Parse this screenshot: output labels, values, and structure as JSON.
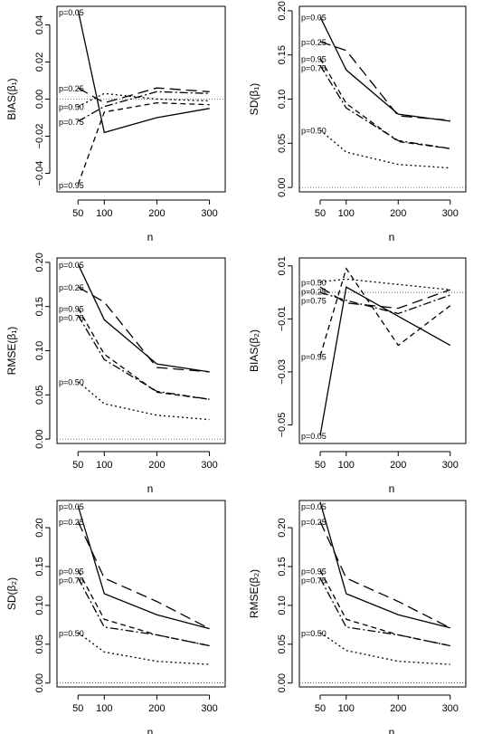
{
  "chart_data": [
    {
      "type": "line",
      "ylabel": "BIAS(β₁)",
      "xlabel": "n",
      "x": [
        50,
        100,
        200,
        300
      ],
      "xticks": [
        "50",
        "100",
        "200",
        "300"
      ],
      "ylim": [
        -0.05,
        0.05
      ],
      "yticks": [
        -0.04,
        -0.02,
        0.0,
        0.02,
        0.04
      ],
      "ytick_labels": [
        "−0.04",
        "−0.02",
        "0.00",
        "0.02",
        "0.04"
      ],
      "reference_line": 0,
      "series": [
        {
          "name": "p=0.05",
          "values": [
            0.048,
            -0.018,
            -0.01,
            -0.005
          ]
        },
        {
          "name": "p=0.25",
          "values": [
            0.006,
            -0.002,
            0.006,
            0.004
          ]
        },
        {
          "name": "p=0.50",
          "values": [
            -0.004,
            0.003,
            0.0,
            -0.001
          ]
        },
        {
          "name": "p=0.75",
          "values": [
            -0.012,
            -0.004,
            0.004,
            0.003
          ]
        },
        {
          "name": "p=0.95",
          "values": [
            -0.046,
            -0.007,
            -0.002,
            -0.003
          ]
        }
      ]
    },
    {
      "type": "line",
      "ylabel": "SD(β₁)",
      "xlabel": "n",
      "x": [
        50,
        100,
        200,
        300
      ],
      "xticks": [
        "50",
        "100",
        "200",
        "300"
      ],
      "ylim": [
        -0.005,
        0.205
      ],
      "yticks": [
        0.0,
        0.05,
        0.1,
        0.15,
        0.2
      ],
      "ytick_labels": [
        "0.00",
        "0.05",
        "0.10",
        "0.15",
        "0.20"
      ],
      "reference_line": 0,
      "series": [
        {
          "name": "p=0.05",
          "values": [
            0.193,
            0.133,
            0.083,
            0.075
          ]
        },
        {
          "name": "p=0.25",
          "values": [
            0.165,
            0.155,
            0.081,
            0.076
          ]
        },
        {
          "name": "p=0.95",
          "values": [
            0.146,
            0.095,
            0.052,
            0.044
          ]
        },
        {
          "name": "p=0.75",
          "values": [
            0.138,
            0.09,
            0.053,
            0.044
          ]
        },
        {
          "name": "p=0.50",
          "values": [
            0.065,
            0.04,
            0.026,
            0.022
          ]
        }
      ]
    },
    {
      "type": "line",
      "ylabel": "RMSE(β₁)",
      "xlabel": "n",
      "x": [
        50,
        100,
        200,
        300
      ],
      "xticks": [
        "50",
        "100",
        "200",
        "300"
      ],
      "ylim": [
        -0.005,
        0.205
      ],
      "yticks": [
        0.0,
        0.05,
        0.1,
        0.15,
        0.2
      ],
      "ytick_labels": [
        "0.00",
        "0.05",
        "0.10",
        "0.15",
        "0.20"
      ],
      "reference_line": 0,
      "series": [
        {
          "name": "p=0.05",
          "values": [
            0.198,
            0.135,
            0.085,
            0.076
          ]
        },
        {
          "name": "p=0.25",
          "values": [
            0.172,
            0.155,
            0.081,
            0.076
          ]
        },
        {
          "name": "p=0.95",
          "values": [
            0.148,
            0.096,
            0.053,
            0.045
          ]
        },
        {
          "name": "p=0.75",
          "values": [
            0.14,
            0.09,
            0.054,
            0.045
          ]
        },
        {
          "name": "p=0.50",
          "values": [
            0.065,
            0.04,
            0.027,
            0.022
          ]
        }
      ]
    },
    {
      "type": "line",
      "ylabel": "BIAS(β₂)",
      "xlabel": "n",
      "x": [
        50,
        100,
        200,
        300
      ],
      "xticks": [
        "50",
        "100",
        "200",
        "300"
      ],
      "ylim": [
        -0.057,
        0.013
      ],
      "yticks": [
        -0.05,
        -0.03,
        -0.01,
        0.01
      ],
      "ytick_labels": [
        "−0.05",
        "−0.03",
        "−0.01",
        "0.01"
      ],
      "reference_line": 0,
      "series": [
        {
          "name": "p=0.50",
          "values": [
            0.004,
            0.005,
            0.003,
            0.001
          ]
        },
        {
          "name": "p=0.25",
          "values": [
            0.002,
            -0.004,
            -0.006,
            0.001
          ]
        },
        {
          "name": "p=0.75",
          "values": [
            0.0,
            -0.003,
            -0.008,
            -0.001
          ]
        },
        {
          "name": "p=0.95",
          "values": [
            -0.024,
            0.009,
            -0.02,
            -0.005
          ]
        },
        {
          "name": "p=0.05",
          "values": [
            -0.054,
            0.002,
            -0.009,
            -0.02
          ]
        }
      ]
    },
    {
      "type": "line",
      "ylabel": "SD(β₂)",
      "xlabel": "n",
      "x": [
        50,
        100,
        200,
        300
      ],
      "xticks": [
        "50",
        "100",
        "200",
        "300"
      ],
      "ylim": [
        -0.005,
        0.235
      ],
      "yticks": [
        0.0,
        0.05,
        0.1,
        0.15,
        0.2
      ],
      "ytick_labels": [
        "0.00",
        "0.05",
        "0.10",
        "0.15",
        "0.20"
      ],
      "reference_line": 0,
      "series": [
        {
          "name": "p=0.05",
          "values": [
            0.228,
            0.115,
            0.088,
            0.07
          ]
        },
        {
          "name": "p=0.25",
          "values": [
            0.208,
            0.135,
            0.105,
            0.07
          ]
        },
        {
          "name": "p=0.95",
          "values": [
            0.145,
            0.082,
            0.062,
            0.048
          ]
        },
        {
          "name": "p=0.75",
          "values": [
            0.135,
            0.072,
            0.062,
            0.048
          ]
        },
        {
          "name": "p=0.50",
          "values": [
            0.065,
            0.04,
            0.028,
            0.024
          ]
        }
      ]
    },
    {
      "type": "line",
      "ylabel": "RMSE(β₂)",
      "xlabel": "n",
      "x": [
        50,
        100,
        200,
        300
      ],
      "xticks": [
        "50",
        "100",
        "200",
        "300"
      ],
      "ylim": [
        -0.005,
        0.235
      ],
      "yticks": [
        0.0,
        0.05,
        0.1,
        0.15,
        0.2
      ],
      "ytick_labels": [
        "0.00",
        "0.05",
        "0.10",
        "0.15",
        "0.20"
      ],
      "reference_line": 0,
      "series": [
        {
          "name": "p=0.05",
          "values": [
            0.233,
            0.115,
            0.088,
            0.071
          ]
        },
        {
          "name": "p=0.25",
          "values": [
            0.208,
            0.135,
            0.105,
            0.071
          ]
        },
        {
          "name": "p=0.95",
          "values": [
            0.145,
            0.082,
            0.062,
            0.048
          ]
        },
        {
          "name": "p=0.75",
          "values": [
            0.135,
            0.072,
            0.062,
            0.048
          ]
        },
        {
          "name": "p=0.50",
          "values": [
            0.065,
            0.042,
            0.028,
            0.024
          ]
        }
      ]
    }
  ]
}
